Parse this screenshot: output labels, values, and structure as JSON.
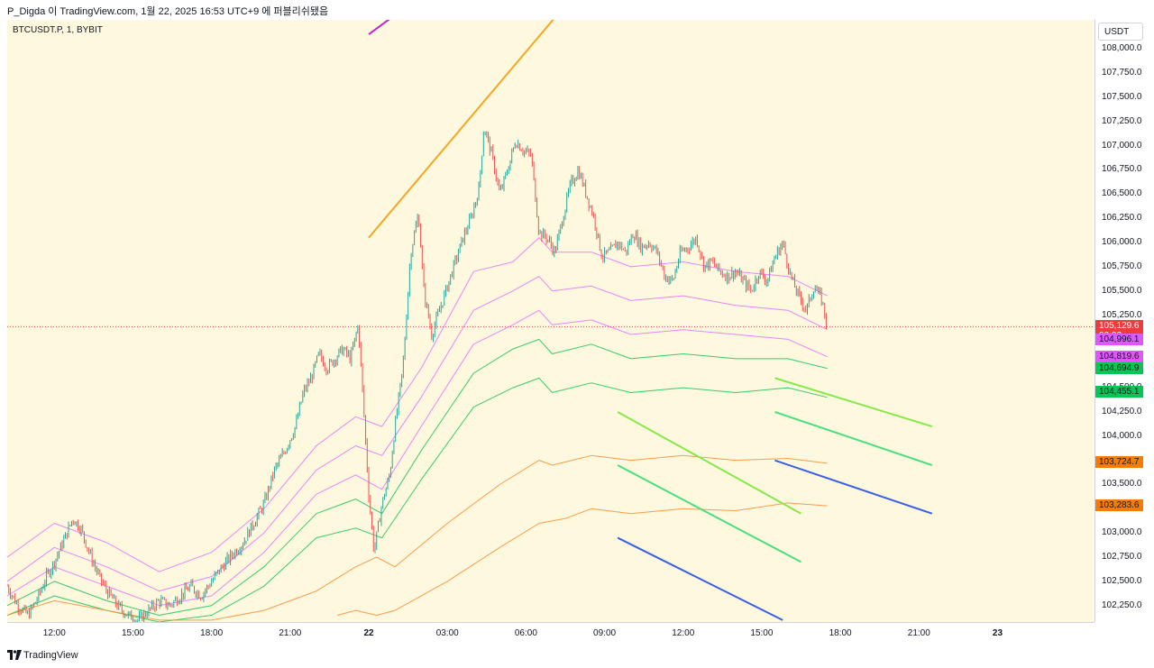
{
  "header": {
    "text": "P_Digda 이 TradingView.com, 1월 22, 2025 16:53 UTC+9 에 퍼블리쉬됐음"
  },
  "symbol": "BTCUSDT.P, 1, BYBIT",
  "currency": "USDT",
  "footer": {
    "brand": "TradingView",
    "logo_icon": "tradingview-logo-icon"
  },
  "colors": {
    "background": "#fdf8de",
    "candle_up": "#26a69a",
    "candle_down": "#ef5350",
    "pink": "#e879f9",
    "green": "#22c55e",
    "orange": "#fb923c",
    "trend_green": "#86e94a",
    "trend_teal": "#4ade80",
    "trend_blue": "#3b5ee8",
    "trend_purple": "#c026d3",
    "trend_orange": "#f5a623",
    "price_line": "#ef5350"
  },
  "chart_data": {
    "type": "line",
    "title": "BTCUSDT.P, 1, BYBIT",
    "x_axis": {
      "ticks": [
        "12:00",
        "15:00",
        "18:00",
        "21:00",
        "22",
        "03:00",
        "06:00",
        "09:00",
        "12:00",
        "15:00",
        "18:00",
        "21:00",
        "23"
      ],
      "tick_hours": [
        12,
        15,
        18,
        21,
        24,
        27,
        30,
        33,
        36,
        39,
        42,
        45,
        48
      ],
      "range_hours": [
        10.2,
        51.7
      ]
    },
    "y_axis": {
      "ticks": [
        "102,250.0",
        "102,500.0",
        "102,750.0",
        "103,000.0",
        "103,250.0",
        "103,500.0",
        "103,750.0",
        "104,000.0",
        "104,250.0",
        "104,500.0",
        "104,750.0",
        "105,000.0",
        "105,250.0",
        "105,500.0",
        "105,750.0",
        "106,000.0",
        "106,250.0",
        "106,500.0",
        "106,750.0",
        "107,000.0",
        "107,250.0",
        "107,500.0",
        "107,750.0",
        "108,000.0"
      ],
      "tick_values": [
        102250,
        102500,
        102750,
        103000,
        103250,
        103500,
        103750,
        104000,
        104250,
        104500,
        104750,
        105000,
        105250,
        105500,
        105750,
        106000,
        106250,
        106500,
        106750,
        107000,
        107250,
        107500,
        107750,
        108000
      ],
      "range": [
        102080,
        108300
      ]
    },
    "last_price": {
      "value": 105129.6,
      "label": "105,129.6",
      "countdown": "00:02"
    },
    "price_labels": [
      {
        "label": "104,996.1",
        "value": 104996.1,
        "color": "#e056fd"
      },
      {
        "label": "104,819.6",
        "value": 104819.6,
        "color": "#e056fd"
      },
      {
        "label": "104,694.9",
        "value": 104694.9,
        "color": "#00c853"
      },
      {
        "label": "104,455.1",
        "value": 104455.1,
        "color": "#00c853"
      },
      {
        "label": "103,724.7",
        "value": 103724.7,
        "color": "#f57c00"
      },
      {
        "label": "103,283.6",
        "value": 103283.6,
        "color": "#f57c00"
      }
    ],
    "price_path": [
      [
        10.2,
        102450
      ],
      [
        10.6,
        102250
      ],
      [
        11.0,
        102150
      ],
      [
        11.4,
        102350
      ],
      [
        11.7,
        102550
      ],
      [
        12.0,
        102700
      ],
      [
        12.4,
        102950
      ],
      [
        12.7,
        103150
      ],
      [
        13.0,
        103050
      ],
      [
        13.4,
        102750
      ],
      [
        13.7,
        102550
      ],
      [
        14.0,
        102400
      ],
      [
        14.4,
        102250
      ],
      [
        14.8,
        102150
      ],
      [
        15.2,
        102100
      ],
      [
        15.6,
        102200
      ],
      [
        16.0,
        102300
      ],
      [
        16.4,
        102250
      ],
      [
        16.8,
        102350
      ],
      [
        17.2,
        102450
      ],
      [
        17.6,
        102350
      ],
      [
        18.0,
        102500
      ],
      [
        18.4,
        102650
      ],
      [
        18.8,
        102780
      ],
      [
        19.2,
        102900
      ],
      [
        19.6,
        103100
      ],
      [
        20.0,
        103300
      ],
      [
        20.4,
        103650
      ],
      [
        20.8,
        103850
      ],
      [
        21.2,
        104100
      ],
      [
        21.5,
        104450
      ],
      [
        21.8,
        104600
      ],
      [
        22.1,
        104850
      ],
      [
        22.4,
        104700
      ],
      [
        22.7,
        104800
      ],
      [
        23.0,
        104900
      ],
      [
        23.3,
        104800
      ],
      [
        23.6,
        105150
      ],
      [
        23.8,
        104300
      ],
      [
        24.0,
        103400
      ],
      [
        24.2,
        102800
      ],
      [
        24.5,
        103300
      ],
      [
        24.8,
        103600
      ],
      [
        25.0,
        104100
      ],
      [
        25.3,
        104700
      ],
      [
        25.6,
        105900
      ],
      [
        25.9,
        106300
      ],
      [
        26.1,
        105500
      ],
      [
        26.4,
        105050
      ],
      [
        26.7,
        105300
      ],
      [
        27.0,
        105550
      ],
      [
        27.3,
        105800
      ],
      [
        27.6,
        106050
      ],
      [
        27.9,
        106250
      ],
      [
        28.2,
        106550
      ],
      [
        28.4,
        107200
      ],
      [
        28.7,
        106900
      ],
      [
        29.0,
        106500
      ],
      [
        29.3,
        106750
      ],
      [
        29.6,
        107050
      ],
      [
        29.9,
        106950
      ],
      [
        30.2,
        106900
      ],
      [
        30.5,
        106100
      ],
      [
        30.8,
        106050
      ],
      [
        31.1,
        105900
      ],
      [
        31.4,
        106250
      ],
      [
        31.7,
        106600
      ],
      [
        32.0,
        106750
      ],
      [
        32.3,
        106500
      ],
      [
        32.6,
        106250
      ],
      [
        32.9,
        105850
      ],
      [
        33.2,
        105900
      ],
      [
        33.5,
        106000
      ],
      [
        33.8,
        105900
      ],
      [
        34.1,
        106100
      ],
      [
        34.4,
        105950
      ],
      [
        34.7,
        106000
      ],
      [
        35.0,
        105900
      ],
      [
        35.3,
        105650
      ],
      [
        35.6,
        105600
      ],
      [
        35.9,
        105900
      ],
      [
        36.2,
        105950
      ],
      [
        36.5,
        106050
      ],
      [
        36.8,
        105750
      ],
      [
        37.1,
        105800
      ],
      [
        37.4,
        105700
      ],
      [
        37.7,
        105650
      ],
      [
        38.0,
        105700
      ],
      [
        38.3,
        105600
      ],
      [
        38.6,
        105500
      ],
      [
        38.9,
        105700
      ],
      [
        39.2,
        105600
      ],
      [
        39.5,
        105850
      ],
      [
        39.8,
        106000
      ],
      [
        40.1,
        105650
      ],
      [
        40.4,
        105450
      ],
      [
        40.7,
        105300
      ],
      [
        41.0,
        105550
      ],
      [
        41.3,
        105400
      ],
      [
        41.5,
        105129.6
      ]
    ],
    "series": [
      {
        "name": "",
        "color": "#e879f9",
        "points": [
          [
            10.2,
            102750
          ],
          [
            12,
            103100
          ],
          [
            14,
            102900
          ],
          [
            16,
            102600
          ],
          [
            18,
            102800
          ],
          [
            20,
            103250
          ],
          [
            22,
            103900
          ],
          [
            23.5,
            104200
          ],
          [
            24.5,
            104100
          ],
          [
            26,
            104700
          ],
          [
            28,
            105700
          ],
          [
            29.5,
            105800
          ],
          [
            30.5,
            106050
          ],
          [
            31,
            105900
          ],
          [
            32.5,
            105900
          ],
          [
            34,
            105750
          ],
          [
            36,
            105800
          ],
          [
            38,
            105700
          ],
          [
            40,
            105650
          ],
          [
            41.5,
            105450
          ]
        ]
      },
      {
        "name": "",
        "color": "#e879f9",
        "points": [
          [
            10.2,
            102500
          ],
          [
            12,
            102850
          ],
          [
            14,
            102650
          ],
          [
            16,
            102400
          ],
          [
            18,
            102550
          ],
          [
            20,
            103000
          ],
          [
            22,
            103650
          ],
          [
            23.5,
            103900
          ],
          [
            24.5,
            103800
          ],
          [
            26,
            104400
          ],
          [
            28,
            105300
          ],
          [
            29.5,
            105500
          ],
          [
            30.5,
            105650
          ],
          [
            31,
            105500
          ],
          [
            32.5,
            105550
          ],
          [
            34,
            105400
          ],
          [
            36,
            105450
          ],
          [
            38,
            105350
          ],
          [
            40,
            105300
          ],
          [
            41.5,
            105100
          ]
        ]
      },
      {
        "name": "",
        "color": "#e879f9",
        "points": [
          [
            10.2,
            102350
          ],
          [
            12,
            102650
          ],
          [
            14,
            102450
          ],
          [
            16,
            102250
          ],
          [
            18,
            102350
          ],
          [
            20,
            102800
          ],
          [
            22,
            103400
          ],
          [
            23.5,
            103600
          ],
          [
            24.5,
            103450
          ],
          [
            26,
            104100
          ],
          [
            28,
            104950
          ],
          [
            29.5,
            105150
          ],
          [
            30.5,
            105300
          ],
          [
            31,
            105150
          ],
          [
            32.5,
            105200
          ],
          [
            34,
            105050
          ],
          [
            36,
            105100
          ],
          [
            38,
            105050
          ],
          [
            40,
            105000
          ],
          [
            41.5,
            104820
          ]
        ]
      },
      {
        "name": "",
        "color": "#22c55e",
        "points": [
          [
            10.2,
            102250
          ],
          [
            12,
            102500
          ],
          [
            14,
            102300
          ],
          [
            16,
            102150
          ],
          [
            18,
            102250
          ],
          [
            20,
            102650
          ],
          [
            22,
            103200
          ],
          [
            23.5,
            103350
          ],
          [
            24.5,
            103200
          ],
          [
            26,
            103850
          ],
          [
            28,
            104650
          ],
          [
            29.5,
            104900
          ],
          [
            30.5,
            105000
          ],
          [
            31,
            104850
          ],
          [
            32.5,
            104950
          ],
          [
            34,
            104800
          ],
          [
            36,
            104850
          ],
          [
            38,
            104800
          ],
          [
            40,
            104800
          ],
          [
            41.5,
            104700
          ]
        ]
      },
      {
        "name": "",
        "color": "#22c55e",
        "points": [
          [
            10.2,
            102150
          ],
          [
            12,
            102350
          ],
          [
            14,
            102200
          ],
          [
            16,
            102080
          ],
          [
            18,
            102150
          ],
          [
            20,
            102450
          ],
          [
            22,
            102950
          ],
          [
            23.5,
            103050
          ],
          [
            24.5,
            102950
          ],
          [
            26,
            103550
          ],
          [
            28,
            104300
          ],
          [
            29.5,
            104500
          ],
          [
            30.5,
            104600
          ],
          [
            31,
            104450
          ],
          [
            32.5,
            104550
          ],
          [
            34,
            104450
          ],
          [
            36,
            104500
          ],
          [
            38,
            104450
          ],
          [
            40,
            104500
          ],
          [
            41.5,
            104400
          ]
        ]
      },
      {
        "name": "",
        "color": "#fb923c",
        "points": [
          [
            10.2,
            102150
          ],
          [
            12,
            102300
          ],
          [
            14,
            102200
          ],
          [
            16,
            102100
          ],
          [
            18,
            102100
          ],
          [
            20,
            102200
          ],
          [
            22,
            102400
          ],
          [
            23.5,
            102650
          ],
          [
            24.3,
            102750
          ],
          [
            25,
            102650
          ],
          [
            27,
            103100
          ],
          [
            29,
            103500
          ],
          [
            30.5,
            103750
          ],
          [
            31,
            103700
          ],
          [
            32.5,
            103800
          ],
          [
            34,
            103750
          ],
          [
            36,
            103800
          ],
          [
            38,
            103750
          ],
          [
            40,
            103770
          ],
          [
            41.5,
            103720
          ]
        ]
      },
      {
        "name": "",
        "color": "#fb923c",
        "points": [
          [
            22.8,
            102150
          ],
          [
            23.5,
            102200
          ],
          [
            24.3,
            102150
          ],
          [
            25,
            102200
          ],
          [
            27,
            102500
          ],
          [
            29,
            102850
          ],
          [
            30.5,
            103100
          ],
          [
            31.5,
            103150
          ],
          [
            32.5,
            103250
          ],
          [
            34,
            103200
          ],
          [
            36,
            103250
          ],
          [
            38,
            103230
          ],
          [
            40,
            103310
          ],
          [
            41.5,
            103280
          ]
        ]
      }
    ],
    "trendlines": [
      {
        "color": "#c026d3",
        "from": [
          24.0,
          108150
        ],
        "to": [
          25.5,
          108450
        ]
      },
      {
        "color": "#f5a623",
        "from": [
          24.0,
          106050
        ],
        "to": [
          31.5,
          108450
        ]
      },
      {
        "color": "#86e94a",
        "from": [
          33.5,
          104250
        ],
        "to": [
          40.5,
          103200
        ]
      },
      {
        "color": "#4ade80",
        "from": [
          33.5,
          103700
        ],
        "to": [
          40.5,
          102700
        ]
      },
      {
        "color": "#3b5ee8",
        "from": [
          33.5,
          102950
        ],
        "to": [
          39.8,
          102100
        ]
      },
      {
        "color": "#86e94a",
        "from": [
          39.5,
          104600
        ],
        "to": [
          45.5,
          104100
        ]
      },
      {
        "color": "#4ade80",
        "from": [
          39.5,
          104250
        ],
        "to": [
          45.5,
          103700
        ]
      },
      {
        "color": "#3b5ee8",
        "from": [
          39.5,
          103750
        ],
        "to": [
          45.5,
          103200
        ]
      }
    ]
  }
}
